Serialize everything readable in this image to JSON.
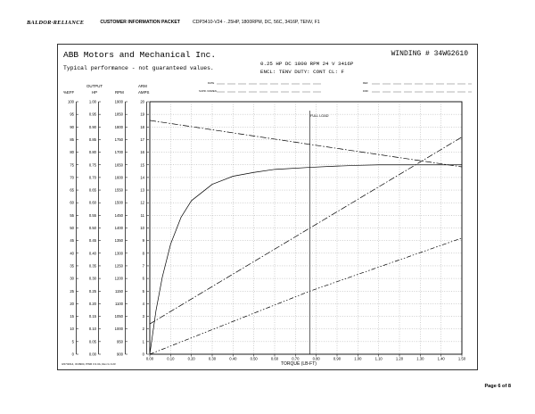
{
  "header": {
    "brand": "BALDOR·RELIANCE",
    "packet_title": "CUSTOMER INFORMATION PACKET",
    "description": "CDP3410-V24 - .25HP, 1800RPM, DC, 56C, 3416P, TENV, F1"
  },
  "sheet": {
    "company": "ABB Motors and Mechanical Inc.",
    "winding": "WINDING # 34WG2610",
    "disclaimer": "Typical performance - not guaranteed values.",
    "spec_line1": "0.25 HP  DC  1800 RPM  24 V  3416P",
    "spec_line2": "ENCL: TENV  DUTY: CONT  CL: F",
    "blank_labels": [
      "DATE",
      "SUPR. NOMEN.",
      "REF",
      "DIFF"
    ],
    "footer_note": "3/27/2014, 3C0904, PWR 3.3.3A, Rev G 3.23"
  },
  "axes": {
    "pct_eff_header": "%EFF",
    "output_hp_header": [
      "OUTPUT",
      "HP"
    ],
    "rpm_header": "RPM",
    "arm_amps_header": [
      "ARM",
      "AMPS"
    ],
    "pct_eff_ticks": [
      "100",
      "95",
      "90",
      "85",
      "80",
      "75",
      "70",
      "65",
      "60",
      "55",
      "50",
      "45",
      "40",
      "35",
      "30",
      "25",
      "20",
      "15",
      "10",
      "5",
      "0"
    ],
    "output_hp_ticks": [
      "1.00",
      "0.95",
      "0.90",
      "0.85",
      "0.80",
      "0.75",
      "0.70",
      "0.65",
      "0.60",
      "0.55",
      "0.50",
      "0.45",
      "0.40",
      "0.35",
      "0.30",
      "0.25",
      "0.20",
      "0.15",
      "0.10",
      "0.05",
      "0.00"
    ],
    "rpm_ticks": [
      "1900",
      "1850",
      "1800",
      "1750",
      "1700",
      "1650",
      "1600",
      "1550",
      "1500",
      "1450",
      "1400",
      "1350",
      "1300",
      "1250",
      "1200",
      "1150",
      "1100",
      "1050",
      "1000",
      "950",
      "900"
    ],
    "amps_ticks": [
      "20",
      "19",
      "18",
      "17",
      "16",
      "15",
      "14",
      "13",
      "12",
      "11",
      "10",
      "9",
      "8",
      "7",
      "6",
      "5",
      "4",
      "3",
      "2",
      "1",
      "0"
    ],
    "x_ticks": [
      "0.00",
      "0.10",
      "0.20",
      "0.30",
      "0.40",
      "0.50",
      "0.60",
      "0.70",
      "0.80",
      "0.90",
      "1.00",
      "1.10",
      "1.20",
      "1.30",
      "1.40",
      "1.50"
    ],
    "x_label": "TORQUE (LB-FT)",
    "annotation": "FULL LOAD"
  },
  "page_number": "Page 6 of 8",
  "chart_data": {
    "type": "line",
    "xlabel": "TORQUE (LB-FT)",
    "xlim": [
      0,
      1.5
    ],
    "full_load_torque": 0.77,
    "axes_ranges": {
      "%EFF": [
        0,
        100
      ],
      "OUTPUT HP": [
        0,
        1.0
      ],
      "RPM": [
        900,
        1900
      ],
      "ARM AMPS": [
        0,
        20
      ]
    },
    "series": [
      {
        "style": "solid",
        "axis": "%EFF",
        "x": [
          0.0,
          0.03,
          0.06,
          0.1,
          0.15,
          0.2,
          0.3,
          0.4,
          0.5,
          0.6,
          0.77,
          0.9,
          1.0,
          1.1,
          1.2,
          1.3,
          1.4,
          1.5
        ],
        "y": [
          0,
          17.4,
          30.5,
          43.6,
          54.2,
          60.8,
          67.3,
          70.5,
          72.0,
          73.2,
          74.0,
          74.5,
          74.8,
          75.0,
          75.0,
          75.0,
          75.0,
          75.0
        ]
      },
      {
        "style": "dashdot",
        "axis": "RPM",
        "x": [
          0.0,
          0.77,
          1.5
        ],
        "y": [
          1826,
          1731,
          1642
        ]
      },
      {
        "style": "dashdot",
        "axis": "ARM AMPS",
        "x": [
          0.0,
          0.77,
          1.5
        ],
        "y": [
          2.4,
          10.0,
          17.2
        ]
      },
      {
        "style": "dashdot2",
        "axis": "OUTPUT HP",
        "x": [
          0.0,
          0.77,
          1.5
        ],
        "y": [
          0.0,
          0.25,
          0.46
        ]
      }
    ]
  }
}
